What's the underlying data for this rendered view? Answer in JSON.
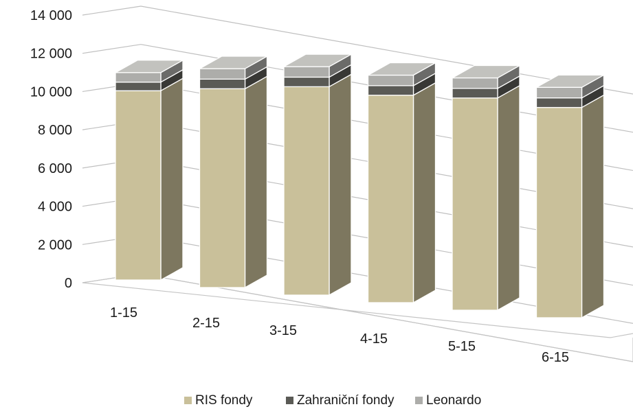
{
  "chart_data": {
    "type": "bar",
    "stacked": true,
    "three_d": true,
    "categories": [
      "1-15",
      "2-15",
      "3-15",
      "4-15",
      "5-15",
      "6-15"
    ],
    "series": [
      {
        "name": "RIS fondy",
        "color": "#C9C09A",
        "values": [
          9900,
          10400,
          10900,
          10850,
          11100,
          11000
        ]
      },
      {
        "name": "Zahraniční fondy",
        "color": "#5A5A55",
        "values": [
          450,
          500,
          500,
          500,
          500,
          500
        ]
      },
      {
        "name": "Leonardo",
        "color": "#ADADAA",
        "values": [
          500,
          550,
          550,
          550,
          550,
          550
        ]
      }
    ],
    "ylim": [
      0,
      14000
    ],
    "yticks": [
      "0",
      "2 000",
      "4 000",
      "6 000",
      "8 000",
      "10 000",
      "12 000",
      "14 000"
    ],
    "ytick_values": [
      0,
      2000,
      4000,
      6000,
      8000,
      10000,
      12000,
      14000
    ],
    "grid": true,
    "legend": "bottom",
    "title": "",
    "xlabel": "",
    "ylabel": ""
  }
}
